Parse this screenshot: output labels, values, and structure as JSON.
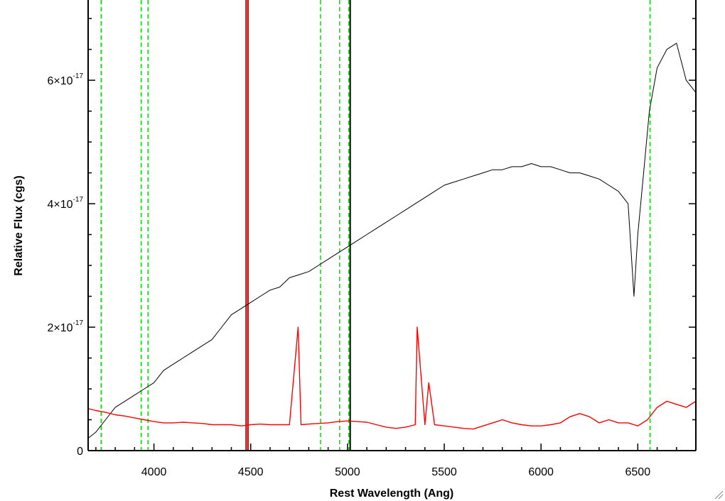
{
  "chart_data": {
    "type": "line",
    "title": "",
    "xlabel": "Rest Wavelength (Ang)",
    "ylabel": "Relative Flux (cgs)",
    "xlim": [
      3660,
      6800
    ],
    "ylim": [
      0,
      7.3e-17
    ],
    "x_ticks": [
      {
        "value": 4000,
        "label": "4000"
      },
      {
        "value": 4500,
        "label": "4500"
      },
      {
        "value": 5000,
        "label": "5000"
      },
      {
        "value": 5500,
        "label": "5500"
      },
      {
        "value": 6000,
        "label": "6000"
      },
      {
        "value": 6500,
        "label": "6500"
      }
    ],
    "y_ticks": [
      {
        "value": 0,
        "mantissa": "0",
        "times": "",
        "base": "",
        "exponent": ""
      },
      {
        "value": 2e-17,
        "mantissa": "2",
        "times": "×",
        "base": "10",
        "exponent": "-17"
      },
      {
        "value": 4e-17,
        "mantissa": "4",
        "times": "×",
        "base": "10",
        "exponent": "-17"
      },
      {
        "value": 6e-17,
        "mantissa": "6",
        "times": "×",
        "base": "10",
        "exponent": "-17"
      }
    ],
    "grid": false,
    "legend": false,
    "vertical_lines": [
      {
        "x": 3727,
        "style": "dashed",
        "color": "#00e000"
      },
      {
        "x": 3934,
        "style": "dashed",
        "color": "#00e000"
      },
      {
        "x": 3969,
        "style": "dashed",
        "color": "#00e000"
      },
      {
        "x": 4861,
        "style": "dashed",
        "color": "#00e000"
      },
      {
        "x": 4959,
        "style": "dashed",
        "color": "#00e000"
      },
      {
        "x": 5007,
        "style": "dashed",
        "color": "#00e000"
      },
      {
        "x": 6563,
        "style": "dashed",
        "color": "#00e000"
      },
      {
        "x": 4476,
        "style": "solid",
        "color": "#cc0000"
      },
      {
        "x": 4486,
        "style": "solid",
        "color": "#cc0000"
      },
      {
        "x": 5014,
        "style": "solid",
        "color": "#000000"
      }
    ],
    "series": [
      {
        "color": "#000000",
        "x": [
          3660,
          3700,
          3750,
          3800,
          3850,
          3900,
          3950,
          4000,
          4050,
          4100,
          4150,
          4200,
          4250,
          4300,
          4350,
          4400,
          4450,
          4500,
          4550,
          4600,
          4650,
          4700,
          4750,
          4800,
          4850,
          4900,
          4950,
          5000,
          5050,
          5100,
          5150,
          5200,
          5250,
          5300,
          5350,
          5400,
          5450,
          5500,
          5550,
          5600,
          5650,
          5700,
          5750,
          5800,
          5850,
          5900,
          5950,
          6000,
          6050,
          6100,
          6150,
          6200,
          6250,
          6300,
          6350,
          6400,
          6450,
          6480,
          6500,
          6530,
          6560,
          6600,
          6650,
          6700,
          6750,
          6800
        ],
        "y": [
          2e-18,
          3e-18,
          5e-18,
          7e-18,
          8e-18,
          9e-18,
          1e-17,
          1.1e-17,
          1.3e-17,
          1.4e-17,
          1.5e-17,
          1.6e-17,
          1.7e-17,
          1.8e-17,
          2e-17,
          2.2e-17,
          2.3e-17,
          2.4e-17,
          2.5e-17,
          2.6e-17,
          2.65e-17,
          2.8e-17,
          2.85e-17,
          2.9e-17,
          3e-17,
          3.1e-17,
          3.2e-17,
          3.3e-17,
          3.4e-17,
          3.5e-17,
          3.6e-17,
          3.7e-17,
          3.8e-17,
          3.9e-17,
          4e-17,
          4.1e-17,
          4.2e-17,
          4.3e-17,
          4.35e-17,
          4.4e-17,
          4.45e-17,
          4.5e-17,
          4.55e-17,
          4.55e-17,
          4.6e-17,
          4.6e-17,
          4.65e-17,
          4.6e-17,
          4.6e-17,
          4.55e-17,
          4.5e-17,
          4.5e-17,
          4.45e-17,
          4.4e-17,
          4.3e-17,
          4.2e-17,
          4e-17,
          2.5e-17,
          3.5e-17,
          4.5e-17,
          5.5e-17,
          6.2e-17,
          6.5e-17,
          6.6e-17,
          6e-17,
          5.8e-17
        ]
      },
      {
        "color": "#ff0000",
        "x": [
          3660,
          3700,
          3750,
          3800,
          3850,
          3900,
          3950,
          4000,
          4050,
          4100,
          4150,
          4200,
          4250,
          4300,
          4350,
          4400,
          4450,
          4500,
          4550,
          4600,
          4650,
          4700,
          4745,
          4760,
          4800,
          4850,
          4900,
          4950,
          5000,
          5050,
          5100,
          5150,
          5200,
          5250,
          5300,
          5350,
          5360,
          5400,
          5420,
          5450,
          5500,
          5550,
          5600,
          5650,
          5700,
          5750,
          5800,
          5850,
          5900,
          5950,
          6000,
          6050,
          6100,
          6150,
          6200,
          6250,
          6300,
          6350,
          6400,
          6450,
          6500,
          6550,
          6600,
          6650,
          6700,
          6750,
          6800
        ],
        "y": [
          6.8e-18,
          6.5e-18,
          6.2e-18,
          5.8e-18,
          5.6e-18,
          5.3e-18,
          5e-18,
          4.7e-18,
          4.5e-18,
          4.5e-18,
          4.6e-18,
          4.5e-18,
          4.4e-18,
          4.2e-18,
          4.2e-18,
          4.2e-18,
          4e-18,
          4.2e-18,
          4.3e-18,
          4.2e-18,
          4.2e-18,
          4.2e-18,
          2e-17,
          4.2e-18,
          4.3e-18,
          4.4e-18,
          4.5e-18,
          4.7e-18,
          4.8e-18,
          4.7e-18,
          4.6e-18,
          4.2e-18,
          3.8e-18,
          3.6e-18,
          3.8e-18,
          4.2e-18,
          2e-17,
          4.2e-18,
          1.1e-17,
          4.2e-18,
          4e-18,
          3.8e-18,
          3.6e-18,
          3.5e-18,
          4e-18,
          4.5e-18,
          5e-18,
          4.5e-18,
          4.2e-18,
          4e-18,
          4e-18,
          4.2e-18,
          4.5e-18,
          5.5e-18,
          6e-18,
          5.5e-18,
          4.5e-18,
          5e-18,
          4.5e-18,
          4.5e-18,
          4e-18,
          5e-18,
          7e-18,
          8e-18,
          7.5e-18,
          7e-18,
          8e-18
        ]
      }
    ]
  }
}
